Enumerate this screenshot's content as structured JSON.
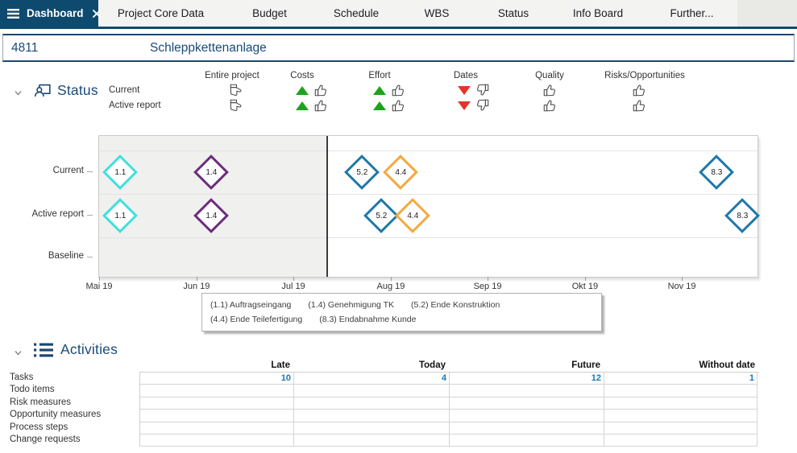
{
  "colors": {
    "navy_bar": "#0d4a6e",
    "title_blue": "#1a4a78",
    "value_blue": "#1b78b5",
    "trend_green": "#1ea21c",
    "trend_red": "#e3352b"
  },
  "tab_bar": {
    "active_tab": {
      "label": "Dashboard",
      "close_icon": "x",
      "menu_icon": "hamburger"
    },
    "tabs": [
      "Project Core Data",
      "Budget",
      "Schedule",
      "WBS",
      "Status",
      "Info Board",
      "Further..."
    ]
  },
  "project_header": {
    "id": "4811",
    "name": "Schleppkettenanlage"
  },
  "status": {
    "title": "Status",
    "row_labels": [
      "Current",
      "Active report"
    ],
    "columns": [
      {
        "label": "Entire project",
        "trend": "none",
        "thumb": "neutral"
      },
      {
        "label": "Costs",
        "trend": "up",
        "thumb": "up"
      },
      {
        "label": "Effort",
        "trend": "up",
        "thumb": "up"
      },
      {
        "label": "Dates",
        "trend": "down",
        "thumb": "down"
      },
      {
        "label": "Quality",
        "trend": "none",
        "thumb": "up"
      },
      {
        "label": "Risks/Opportunities",
        "trend": "none",
        "thumb": "up"
      }
    ]
  },
  "chart_data": {
    "type": "milestone-timeline",
    "rows": [
      {
        "label": "Current",
        "milestones": [
          {
            "id": "1.1",
            "pct": 3.2
          },
          {
            "id": "1.4",
            "pct": 17.0
          },
          {
            "id": "5.2",
            "pct": 39.9
          },
          {
            "id": "4.4",
            "pct": 45.8
          },
          {
            "id": "8.3",
            "pct": 93.8
          }
        ]
      },
      {
        "label": "Active report",
        "milestones": [
          {
            "id": "1.1",
            "pct": 3.2
          },
          {
            "id": "1.4",
            "pct": 17.0
          },
          {
            "id": "5.2",
            "pct": 42.9
          },
          {
            "id": "4.4",
            "pct": 47.6
          },
          {
            "id": "8.3",
            "pct": 97.7
          }
        ]
      },
      {
        "label": "Baseline",
        "milestones": []
      }
    ],
    "today_pct": 34.6,
    "axis_months": [
      {
        "label": "Mai 19",
        "pct": 0
      },
      {
        "label": "Jun 19",
        "pct": 14.8
      },
      {
        "label": "Jul 19",
        "pct": 29.5
      },
      {
        "label": "Aug 19",
        "pct": 44.3
      },
      {
        "label": "Sep 19",
        "pct": 59.0
      },
      {
        "label": "Okt 19",
        "pct": 73.8
      },
      {
        "label": "Nov 19",
        "pct": 88.5
      }
    ],
    "milestone_colors": {
      "1.1": "#3fe0db",
      "1.4": "#6b2d7b",
      "5.2": "#1f78a8",
      "4.4": "#f4a93f",
      "8.3": "#1f78a8"
    },
    "legend": [
      {
        "id": "1.1",
        "text": "Auftragseingang"
      },
      {
        "id": "1.4",
        "text": "Genehmigung TK"
      },
      {
        "id": "5.2",
        "text": "Ende Konstruktion"
      },
      {
        "id": "4.4",
        "text": "Ende Teilefertigung"
      },
      {
        "id": "8.3",
        "text": "Endabnahme Kunde"
      }
    ]
  },
  "activities": {
    "title": "Activities",
    "columns": [
      "Late",
      "Today",
      "Future",
      "Without date"
    ],
    "rows": [
      {
        "label": "Tasks",
        "values": [
          "10",
          "4",
          "12",
          "1"
        ]
      },
      {
        "label": "Todo items",
        "values": [
          "",
          "",
          "",
          ""
        ]
      },
      {
        "label": "Risk measures",
        "values": [
          "",
          "",
          "",
          ""
        ]
      },
      {
        "label": "Opportunity measures",
        "values": [
          "",
          "",
          "",
          ""
        ]
      },
      {
        "label": "Process steps",
        "values": [
          "",
          "",
          "",
          ""
        ]
      },
      {
        "label": "Change requests",
        "values": [
          "",
          "",
          "",
          ""
        ]
      }
    ]
  }
}
